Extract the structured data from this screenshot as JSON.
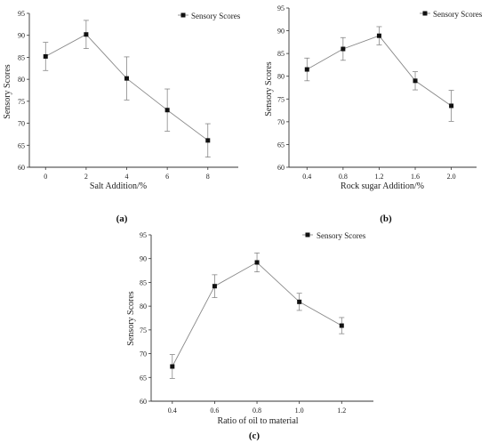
{
  "chart_data": [
    {
      "type": "line",
      "panel_label": "(a)",
      "xlabel": "Salt Addition/%",
      "ylabel": "Sensory Scores",
      "legend_label": "Sensory Scores",
      "legend_position": "top-right",
      "x": [
        0,
        2,
        4,
        6,
        8
      ],
      "x_ticks": [
        "0",
        "2",
        "4",
        "6",
        "8"
      ],
      "xlim": [
        -0.8,
        9.5
      ],
      "ylim": [
        60,
        95
      ],
      "y_ticks": [
        "60",
        "65",
        "70",
        "75",
        "80",
        "85",
        "90",
        "95"
      ],
      "series": [
        {
          "name": "Sensory Scores",
          "values": [
            85.2,
            90.2,
            80.2,
            73.0,
            66.1
          ],
          "errors": [
            3.2,
            3.2,
            4.9,
            4.8,
            3.8
          ]
        }
      ],
      "grid": false
    },
    {
      "type": "line",
      "panel_label": "(b)",
      "xlabel": "Rock sugar Addition/%",
      "ylabel": "Sensory Scores",
      "legend_label": "Sensory Scores",
      "legend_position": "top-right",
      "x": [
        0.4,
        0.8,
        1.2,
        1.6,
        2.0
      ],
      "x_ticks": [
        "0.4",
        "0.8",
        "1.2",
        "1.6",
        "2.0"
      ],
      "xlim": [
        0.2,
        2.28
      ],
      "ylim": [
        60,
        95
      ],
      "y_ticks": [
        "60",
        "65",
        "70",
        "75",
        "80",
        "85",
        "90",
        "95"
      ],
      "series": [
        {
          "name": "Sensory Scores",
          "values": [
            81.5,
            86.0,
            88.9,
            79.0,
            73.5
          ],
          "errors": [
            2.5,
            2.5,
            2.0,
            2.0,
            3.4
          ]
        }
      ],
      "grid": false
    },
    {
      "type": "line",
      "panel_label": "(c)",
      "xlabel": "Ratio of oil to material",
      "ylabel": "Sensory Scores",
      "legend_label": "Sensory Scores",
      "legend_position": "top-right",
      "x": [
        0.4,
        0.6,
        0.8,
        1.0,
        1.2
      ],
      "x_ticks": [
        "0.4",
        "0.6",
        "0.8",
        "1.0",
        "1.2"
      ],
      "xlim": [
        0.3,
        1.35
      ],
      "ylim": [
        60,
        95
      ],
      "y_ticks": [
        "60",
        "65",
        "70",
        "75",
        "80",
        "85",
        "90",
        "95"
      ],
      "series": [
        {
          "name": "Sensory Scores",
          "values": [
            67.3,
            84.2,
            89.2,
            80.9,
            75.9
          ],
          "errors": [
            2.5,
            2.4,
            2.0,
            1.8,
            1.7
          ]
        }
      ],
      "grid": false
    }
  ]
}
